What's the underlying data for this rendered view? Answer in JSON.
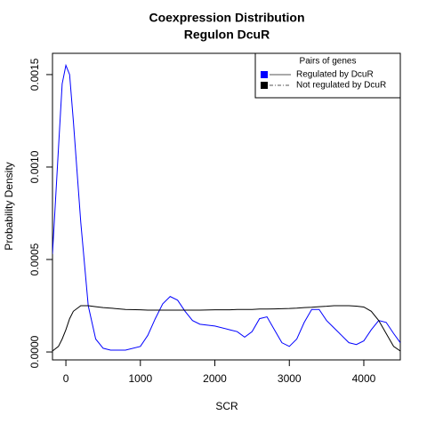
{
  "chart_data": {
    "type": "line",
    "title_lines": [
      "Coexpression Distribution",
      "Regulon DcuR"
    ],
    "x_label": "SCR",
    "y_label": "Probability Density",
    "x": [
      -180,
      -100,
      -50,
      0,
      50,
      100,
      200,
      300,
      400,
      500,
      600,
      800,
      1000,
      1100,
      1200,
      1300,
      1400,
      1500,
      1600,
      1700,
      1800,
      2000,
      2200,
      2300,
      2400,
      2500,
      2600,
      2700,
      2800,
      2900,
      3000,
      3100,
      3200,
      3300,
      3400,
      3500,
      3600,
      3700,
      3800,
      3900,
      4000,
      4100,
      4200,
      4300,
      4400,
      4490
    ],
    "series": [
      {
        "name": "Regulated by  DcuR",
        "color": "#0000ff",
        "values": [
          0.00053,
          0.0011,
          0.00145,
          0.00155,
          0.0015,
          0.00125,
          0.0007,
          0.00025,
          7e-05,
          2e-05,
          1e-05,
          1e-05,
          3e-05,
          9e-05,
          0.00018,
          0.00026,
          0.0003,
          0.00028,
          0.00022,
          0.00017,
          0.00015,
          0.00014,
          0.00012,
          0.00011,
          8e-05,
          0.00011,
          0.00018,
          0.00019,
          0.00012,
          5e-05,
          3e-05,
          7e-05,
          0.00016,
          0.00023,
          0.00023,
          0.00017,
          0.00013,
          9e-05,
          5e-05,
          4e-05,
          6e-05,
          0.00012,
          0.00017,
          0.00016,
          0.0001,
          5e-05
        ]
      },
      {
        "name": "Not regulated by  DcuR",
        "color": "#000000",
        "values": [
          5e-06,
          3e-05,
          7e-05,
          0.00012,
          0.00018,
          0.00022,
          0.00025,
          0.00025,
          0.000245,
          0.00024,
          0.000237,
          0.00023,
          0.000228,
          0.000226,
          0.000226,
          0.000226,
          0.000226,
          0.000226,
          0.000226,
          0.000226,
          0.000226,
          0.000228,
          0.000228,
          0.00023,
          0.00023,
          0.00023,
          0.000232,
          0.000232,
          0.000233,
          0.000234,
          0.000235,
          0.000237,
          0.00024,
          0.000242,
          0.000245,
          0.000247,
          0.00025,
          0.00025,
          0.00025,
          0.000248,
          0.000243,
          0.00022,
          0.00017,
          0.0001,
          3e-05,
          5e-06
        ]
      }
    ],
    "xlim": [
      -180,
      4490
    ],
    "xticks": [
      0,
      1000,
      2000,
      3000,
      4000
    ],
    "ylim": [
      -4.3e-05,
      0.001615
    ],
    "yticks": [
      {
        "value": 0,
        "label": "0.0000"
      },
      0.0005,
      {
        "value": 0.001,
        "label": "0.0010"
      },
      0.0015
    ],
    "legend_title": "Pairs of genes",
    "legend_position": "top-right"
  }
}
